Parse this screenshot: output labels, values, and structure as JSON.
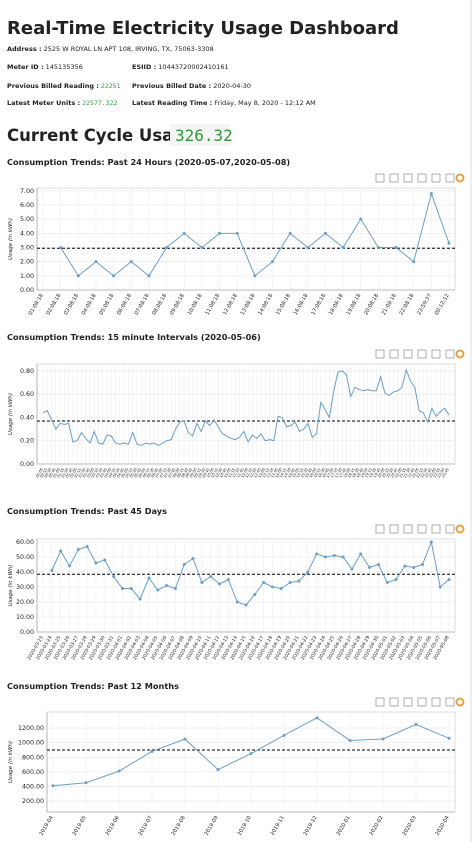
{
  "header": {
    "title": "Real-Time Electricity Usage Dashboard",
    "address": {
      "label": "Address :",
      "value": "2525 W ROYAL LN APT 108, IRVING, TX, 75063-3308"
    },
    "meter_id": {
      "label": "Meter ID :",
      "value": "145135356"
    },
    "esiid": {
      "label": "ESIID :",
      "value": "10443720002410161"
    },
    "previous_billed_reading": {
      "label": "Previous Billed Reading :",
      "value": "22251"
    },
    "previous_billed_date": {
      "label": "Previous Billed Date :",
      "value": "2020-04-30"
    },
    "latest_meter_units": {
      "label": "Latest Meter Units :",
      "value": "22577.322"
    },
    "latest_reading_time": {
      "label": "Latest Reading Time :",
      "value": "Friday, May 8, 2020 - 12:12 AM"
    },
    "current_cycle_usage": {
      "label": "Current Cycle Usage :",
      "value": "326.32"
    }
  },
  "chart_data": [
    {
      "type": "line",
      "title": "Consumption Trends: Past 24 Hours (2020-05-07,2020-05-08)",
      "y_label": "Usage (in kWh)",
      "color": "#6a9fc9",
      "markers": true,
      "grid": true,
      "categories": [
        "01:08:18",
        "02:08:18",
        "03:08:18",
        "04:08:18",
        "05:08:18",
        "06:08:18",
        "07:08:18",
        "08:08:18",
        "09:08:18",
        "10:08:18",
        "11:08:18",
        "12:08:18",
        "13:08:18",
        "14:08:18",
        "15:08:18",
        "16:08:18",
        "17:08:18",
        "18:08:18",
        "19:08:18",
        "20:08:18",
        "21:08:18",
        "22:08:18",
        "23:59:37",
        "00:12:12"
      ],
      "values": [
        null,
        3.0,
        1.0,
        2.0,
        1.0,
        2.0,
        1.0,
        3.0,
        4.0,
        3.0,
        4.0,
        4.0,
        1.0,
        2.0,
        4.0,
        3.0,
        4.0,
        3.0,
        5.0,
        3.0,
        3.0,
        2.0,
        6.8,
        3.3
      ],
      "reference_line": 2.95,
      "ylim": [
        0,
        7.2
      ],
      "yticks": [
        {
          "value": 0,
          "label": "0.00"
        },
        {
          "value": 1,
          "label": "1.00"
        },
        {
          "value": 2,
          "label": "2.00"
        },
        {
          "value": 3,
          "label": "3.00"
        },
        {
          "value": 4,
          "label": "4.00"
        },
        {
          "value": 5,
          "label": "5.00"
        },
        {
          "value": 6,
          "label": "6.00"
        },
        {
          "value": 7,
          "label": "7.00"
        }
      ]
    },
    {
      "type": "line",
      "title": "Consumption Trends: 15 minute Intervals (2020-05-06)",
      "y_label": "Usage (in kWh)",
      "color": "#6a9fc9",
      "markers": false,
      "grid": true,
      "categories": [
        "00:00",
        "00:15",
        "00:30",
        "00:45",
        "01:00",
        "01:15",
        "01:30",
        "01:45",
        "02:00",
        "02:15",
        "02:30",
        "02:45",
        "03:00",
        "03:15",
        "03:30",
        "03:45",
        "04:00",
        "04:15",
        "04:30",
        "04:45",
        "05:00",
        "05:15",
        "05:30",
        "05:45",
        "06:00",
        "06:15",
        "06:30",
        "06:45",
        "07:00",
        "07:15",
        "07:30",
        "07:45",
        "08:00",
        "08:15",
        "08:30",
        "08:45",
        "09:00",
        "09:15",
        "09:30",
        "09:45",
        "10:00",
        "10:15",
        "10:30",
        "10:45",
        "11:00",
        "11:15",
        "11:30",
        "11:45",
        "12:00",
        "12:15",
        "12:30",
        "12:45",
        "13:00",
        "13:15",
        "13:30",
        "13:45",
        "14:00",
        "14:15",
        "14:30",
        "14:45",
        "15:00",
        "15:15",
        "15:30",
        "15:45",
        "16:00",
        "16:15",
        "16:30",
        "16:45",
        "17:00",
        "17:15",
        "17:30",
        "17:45",
        "18:00",
        "18:15",
        "18:30",
        "18:45",
        "19:00",
        "19:15",
        "19:30",
        "19:45",
        "20:00",
        "20:15",
        "20:30",
        "20:45",
        "21:00",
        "21:15",
        "21:30",
        "21:45",
        "22:00",
        "22:15",
        "22:30",
        "22:45",
        "23:00",
        "23:15",
        "23:30",
        "23:45"
      ],
      "values": [
        0.44,
        0.46,
        0.38,
        0.3,
        0.35,
        0.34,
        0.35,
        0.19,
        0.2,
        0.27,
        0.22,
        0.18,
        0.28,
        0.18,
        0.17,
        0.25,
        0.24,
        0.18,
        0.17,
        0.18,
        0.17,
        0.27,
        0.17,
        0.16,
        0.18,
        0.17,
        0.18,
        0.16,
        0.18,
        0.2,
        0.21,
        0.3,
        0.36,
        0.37,
        0.27,
        0.24,
        0.35,
        0.28,
        0.37,
        0.33,
        0.38,
        0.32,
        0.26,
        0.24,
        0.22,
        0.21,
        0.23,
        0.28,
        0.19,
        0.25,
        0.22,
        0.26,
        0.2,
        0.21,
        0.2,
        0.41,
        0.4,
        0.32,
        0.33,
        0.36,
        0.28,
        0.3,
        0.35,
        0.23,
        0.26,
        0.53,
        0.47,
        0.4,
        0.62,
        0.79,
        0.8,
        0.77,
        0.58,
        0.66,
        0.64,
        0.63,
        0.64,
        0.63,
        0.63,
        0.75,
        0.61,
        0.59,
        0.62,
        0.63,
        0.66,
        0.81,
        0.71,
        0.66,
        0.46,
        0.44,
        0.36,
        0.48,
        0.41,
        0.45,
        0.48,
        0.42
      ],
      "reference_line": 0.37,
      "ylim": [
        0,
        0.86
      ],
      "yticks": [
        {
          "value": 0,
          "label": "0.00"
        },
        {
          "value": 0.2,
          "label": "0.20"
        },
        {
          "value": 0.4,
          "label": "0.40"
        },
        {
          "value": 0.6,
          "label": "0.60"
        },
        {
          "value": 0.8,
          "label": "0.80"
        }
      ]
    },
    {
      "type": "line",
      "title": "Consumption Trends: Past 45 Days",
      "y_label": "Usage (in kWh)",
      "color": "#6a9fc9",
      "markers": true,
      "grid": true,
      "categories": [
        "2020-03-23",
        "2020-03-24",
        "2020-03-25",
        "2020-03-26",
        "2020-03-27",
        "2020-03-28",
        "2020-03-29",
        "2020-03-30",
        "2020-03-31",
        "2020-04-01",
        "2020-04-02",
        "2020-04-03",
        "2020-04-04",
        "2020-04-05",
        "2020-04-06",
        "2020-04-07",
        "2020-04-08",
        "2020-04-09",
        "2020-04-10",
        "2020-04-11",
        "2020-04-12",
        "2020-04-13",
        "2020-04-14",
        "2020-04-15",
        "2020-04-16",
        "2020-04-17",
        "2020-04-18",
        "2020-04-19",
        "2020-04-20",
        "2020-04-21",
        "2020-04-22",
        "2020-04-23",
        "2020-04-24",
        "2020-04-25",
        "2020-04-26",
        "2020-04-27",
        "2020-04-28",
        "2020-04-29",
        "2020-04-30",
        "2020-05-01",
        "2020-05-02",
        "2020-05-03",
        "2020-05-04",
        "2020-05-05",
        "2020-05-06",
        "2020-05-07",
        "2020-05-08"
      ],
      "values": [
        null,
        41,
        54,
        44,
        55,
        57,
        46,
        48,
        37,
        29,
        29,
        22,
        36,
        28,
        31,
        29,
        45,
        49,
        33,
        37,
        32,
        35,
        20,
        18,
        25,
        33,
        30,
        29,
        33,
        34,
        40,
        52,
        50,
        51,
        50,
        42,
        52,
        43,
        45,
        33,
        35,
        44,
        43,
        45,
        60,
        30,
        35
      ],
      "reference_line": 38.5,
      "ylim": [
        0,
        62
      ],
      "yticks": [
        {
          "value": 0,
          "label": "0.00"
        },
        {
          "value": 10,
          "label": "10.00"
        },
        {
          "value": 20,
          "label": "20.00"
        },
        {
          "value": 30,
          "label": "30.00"
        },
        {
          "value": 40,
          "label": "40.00"
        },
        {
          "value": 50,
          "label": "50.00"
        },
        {
          "value": 60,
          "label": "60.00"
        }
      ]
    },
    {
      "type": "line",
      "title": "Consumption Trends: Past 12 Months",
      "y_label": "Usage (in kWh)",
      "color": "#6a9fc9",
      "markers": true,
      "grid": true,
      "categories": [
        "2019-04",
        "2019-05",
        "2019-06",
        "2019-07",
        "2019-08",
        "2019-09",
        "2019-10",
        "2019-11",
        "2019-12",
        "2020-01",
        "2020-02",
        "2020-03",
        "2020-04"
      ],
      "values": [
        410,
        450,
        610,
        880,
        1050,
        630,
        850,
        1100,
        1340,
        1030,
        1050,
        1250,
        1060
      ],
      "reference_line": 900,
      "ylim": [
        50,
        1420
      ],
      "yticks": [
        {
          "value": 200,
          "label": "200.00"
        },
        {
          "value": 400,
          "label": "400.00"
        },
        {
          "value": 600,
          "label": "600.00"
        },
        {
          "value": 800,
          "label": "800.00"
        },
        {
          "value": 1000,
          "label": "1000.00"
        },
        {
          "value": 1200,
          "label": "1200.00"
        }
      ]
    }
  ]
}
